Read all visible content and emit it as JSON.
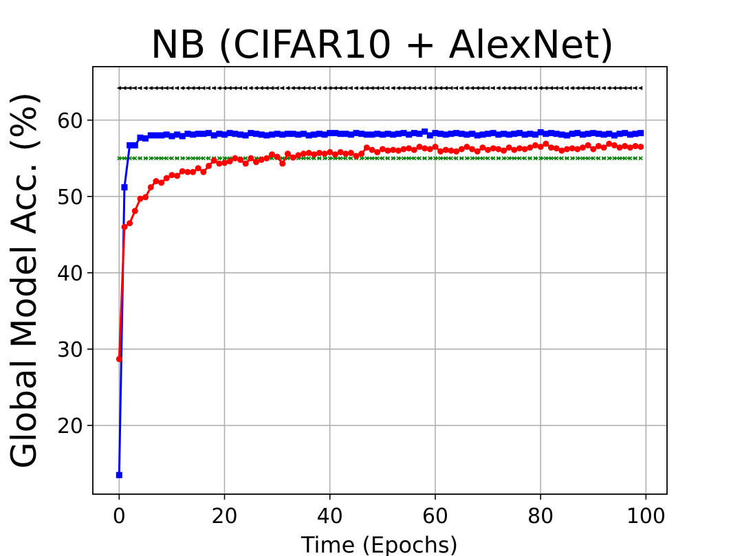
{
  "chart_data": {
    "type": "line",
    "title": "NB (CIFAR10 + AlexNet)",
    "xlabel": "Time (Epochs)",
    "ylabel": "Global Model Acc. (%)",
    "xlim": [
      -5,
      104
    ],
    "ylim": [
      11,
      67
    ],
    "xticks": [
      0,
      20,
      40,
      60,
      80,
      100
    ],
    "yticks": [
      20,
      30,
      40,
      50,
      60
    ],
    "grid": true,
    "series": [
      {
        "color": "#000000",
        "marker": "triangle-left",
        "style": "dashed",
        "x": [
          0,
          99
        ],
        "values": [
          64.2,
          64.2
        ]
      },
      {
        "color": "#008000",
        "marker": "x",
        "style": "dashed",
        "x": [
          0,
          99
        ],
        "values": [
          55.0,
          55.0
        ]
      },
      {
        "color": "#0000ff",
        "marker": "square",
        "style": "solid",
        "x": [
          0,
          1,
          2,
          3,
          4,
          5,
          6,
          7,
          8,
          9,
          10,
          11,
          12,
          13,
          14,
          15,
          16,
          17,
          18,
          19,
          20,
          21,
          22,
          23,
          24,
          25,
          26,
          27,
          28,
          29,
          30,
          31,
          32,
          33,
          34,
          35,
          36,
          37,
          38,
          39,
          40,
          41,
          42,
          43,
          44,
          45,
          46,
          47,
          48,
          49,
          50,
          51,
          52,
          53,
          54,
          55,
          56,
          57,
          58,
          59,
          60,
          61,
          62,
          63,
          64,
          65,
          66,
          67,
          68,
          69,
          70,
          71,
          72,
          73,
          74,
          75,
          76,
          77,
          78,
          79,
          80,
          81,
          82,
          83,
          84,
          85,
          86,
          87,
          88,
          89,
          90,
          91,
          92,
          93,
          94,
          95,
          96,
          97,
          98,
          99
        ],
        "values": [
          13.5,
          51.2,
          56.7,
          56.7,
          57.7,
          57.6,
          58.0,
          58.0,
          58.0,
          58.1,
          57.9,
          58.1,
          57.9,
          58.2,
          58.1,
          58.2,
          58.2,
          58.3,
          58.0,
          58.2,
          58.1,
          58.3,
          58.2,
          58.1,
          58.0,
          58.3,
          58.2,
          58.1,
          58.0,
          58.1,
          58.2,
          58.1,
          58.2,
          58.2,
          58.1,
          58.2,
          58.0,
          58.1,
          58.2,
          58.1,
          58.3,
          58.3,
          58.2,
          58.2,
          58.1,
          58.3,
          58.2,
          58.1,
          58.1,
          58.2,
          58.1,
          58.2,
          58.1,
          58.2,
          58.3,
          58.1,
          58.3,
          58.2,
          58.5,
          58.0,
          58.3,
          58.2,
          58.1,
          58.2,
          58.3,
          58.2,
          58.1,
          58.2,
          58.0,
          58.1,
          58.2,
          58.3,
          58.1,
          58.2,
          58.1,
          58.2,
          58.3,
          58.1,
          58.2,
          58.1,
          58.4,
          58.2,
          58.3,
          58.2,
          58.1,
          58.0,
          58.2,
          58.3,
          58.1,
          58.2,
          58.3,
          58.2,
          58.1,
          58.2,
          58.0,
          58.2,
          58.3,
          58.1,
          58.2,
          58.3
        ]
      },
      {
        "color": "#ff0000",
        "marker": "circle",
        "style": "solid",
        "x": [
          0,
          1,
          2,
          3,
          4,
          5,
          6,
          7,
          8,
          9,
          10,
          11,
          12,
          13,
          14,
          15,
          16,
          17,
          18,
          19,
          20,
          21,
          22,
          23,
          24,
          25,
          26,
          27,
          28,
          29,
          30,
          31,
          32,
          33,
          34,
          35,
          36,
          37,
          38,
          39,
          40,
          41,
          42,
          43,
          44,
          45,
          46,
          47,
          48,
          49,
          50,
          51,
          52,
          53,
          54,
          55,
          56,
          57,
          58,
          59,
          60,
          61,
          62,
          63,
          64,
          65,
          66,
          67,
          68,
          69,
          70,
          71,
          72,
          73,
          74,
          75,
          76,
          77,
          78,
          79,
          80,
          81,
          82,
          83,
          84,
          85,
          86,
          87,
          88,
          89,
          90,
          91,
          92,
          93,
          94,
          95,
          96,
          97,
          98,
          99
        ],
        "values": [
          28.7,
          46.0,
          46.5,
          48.1,
          49.7,
          49.9,
          51.2,
          52.0,
          51.8,
          52.4,
          52.8,
          52.7,
          53.3,
          53.2,
          53.2,
          53.7,
          53.2,
          54.0,
          54.7,
          54.3,
          54.4,
          54.6,
          55.0,
          54.8,
          54.3,
          55.0,
          54.5,
          54.8,
          55.0,
          55.5,
          55.2,
          54.3,
          55.6,
          55.1,
          55.4,
          55.6,
          55.7,
          55.5,
          55.7,
          55.6,
          55.8,
          55.5,
          55.8,
          55.6,
          55.7,
          55.3,
          55.6,
          56.4,
          56.1,
          55.8,
          56.2,
          56.0,
          56.1,
          56.0,
          56.2,
          56.3,
          56.1,
          56.5,
          56.3,
          56.2,
          56.5,
          55.9,
          56.1,
          56.0,
          55.9,
          56.2,
          56.5,
          56.2,
          55.9,
          56.4,
          56.1,
          56.3,
          56.2,
          56.0,
          56.4,
          56.1,
          56.3,
          56.2,
          56.4,
          56.7,
          56.5,
          56.9,
          56.4,
          56.3,
          56.0,
          56.2,
          56.3,
          56.2,
          56.4,
          56.7,
          56.2,
          56.6,
          56.4,
          56.9,
          56.7,
          56.4,
          56.6,
          56.4,
          56.6,
          56.5
        ]
      }
    ]
  }
}
